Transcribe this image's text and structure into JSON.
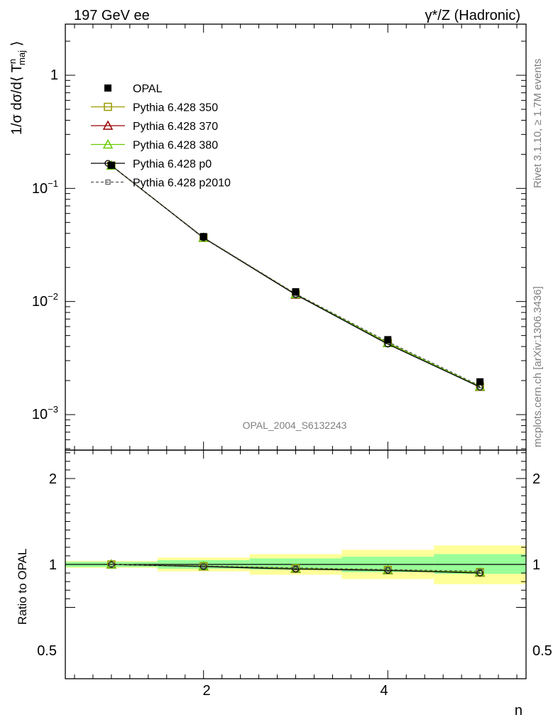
{
  "header": {
    "left_title": "197 GeV ee",
    "right_title": "γ*/Z (Hadronic)"
  },
  "side_text": {
    "rivet": "Rivet 3.1.10, ≥ 1.7M events",
    "site": "mcplots.cern.ch [arXiv:1306.3436]"
  },
  "watermark": "OPAL_2004_S6132243",
  "chart_data": [
    {
      "type": "line",
      "panel": "main",
      "ylabel": "1/σ dσ/d⟨ T^n_maj ⟩",
      "xlabel": "n",
      "xlim": [
        0.5,
        5.5
      ],
      "ylim": [
        0.0005,
        3
      ],
      "yscale": "log",
      "x_tick_labels": [
        "2",
        "4"
      ],
      "y_tick_labels": [
        "10^-3",
        "10^-2",
        "10^-1",
        "1"
      ],
      "legend": {
        "placement": "top-left",
        "entries": [
          "OPAL",
          "Pythia 6.428 350",
          "Pythia 6.428 370",
          "Pythia 6.428 380",
          "Pythia 6.428 p0",
          "Pythia 6.428 p2010"
        ]
      },
      "x": [
        1,
        2,
        3,
        4,
        5
      ],
      "series": [
        {
          "name": "OPAL",
          "values": [
            0.16,
            0.0375,
            0.0122,
            0.0046,
            0.00195
          ],
          "color": "#000000",
          "marker": "filled-square"
        },
        {
          "name": "Pythia 6.428 350",
          "values": [
            0.159,
            0.0366,
            0.0116,
            0.0043,
            0.00177
          ],
          "color": "#999900",
          "marker": "open-square"
        },
        {
          "name": "Pythia 6.428 370",
          "values": [
            0.159,
            0.0366,
            0.0115,
            0.0043,
            0.00176
          ],
          "color": "#990000",
          "marker": "open-triangle"
        },
        {
          "name": "Pythia 6.428 380",
          "values": [
            0.159,
            0.0367,
            0.0116,
            0.0043,
            0.00177
          ],
          "color": "#66cc00",
          "marker": "open-triangle"
        },
        {
          "name": "Pythia 6.428 p0",
          "values": [
            0.159,
            0.0365,
            0.0115,
            0.0042,
            0.00175
          ],
          "color": "#000000",
          "marker": "open-circle"
        },
        {
          "name": "Pythia 6.428 p2010",
          "values": [
            0.159,
            0.0368,
            0.0117,
            0.0044,
            0.0018
          ],
          "color": "#555555",
          "marker": "small-square",
          "dashed": true
        }
      ]
    },
    {
      "type": "line",
      "panel": "ratio",
      "ylabel": "Ratio to OPAL",
      "xlabel": "n",
      "xlim": [
        0.5,
        5.5
      ],
      "ylim": [
        0.4,
        2.4
      ],
      "y_tick_labels": [
        "0.5",
        "1",
        "2"
      ],
      "x_tick_labels": [
        "2",
        "4"
      ],
      "bins": [
        [
          0.5,
          1.5
        ],
        [
          1.5,
          2.5
        ],
        [
          2.5,
          3.5
        ],
        [
          3.5,
          4.5
        ],
        [
          4.5,
          5.5
        ]
      ],
      "band_green": [
        [
          0.97,
          1.03
        ],
        [
          0.95,
          1.05
        ],
        [
          0.94,
          1.07
        ],
        [
          0.91,
          1.09
        ],
        [
          0.89,
          1.12
        ]
      ],
      "band_yellow": [
        [
          0.96,
          1.04
        ],
        [
          0.92,
          1.08
        ],
        [
          0.88,
          1.12
        ],
        [
          0.83,
          1.17
        ],
        [
          0.77,
          1.22
        ]
      ],
      "x": [
        1,
        2,
        3,
        4,
        5
      ],
      "series": [
        {
          "name": "Pythia 6.428 350",
          "values": [
            1.0,
            0.98,
            0.955,
            0.935,
            0.91
          ],
          "color": "#999900",
          "marker": "open-square"
        },
        {
          "name": "Pythia 6.428 370",
          "values": [
            1.0,
            0.977,
            0.95,
            0.932,
            0.905
          ],
          "color": "#990000",
          "marker": "open-triangle"
        },
        {
          "name": "Pythia 6.428 380",
          "values": [
            1.0,
            0.979,
            0.953,
            0.934,
            0.908
          ],
          "color": "#66cc00",
          "marker": "open-triangle"
        },
        {
          "name": "Pythia 6.428 p0",
          "values": [
            1.0,
            0.975,
            0.945,
            0.93,
            0.9
          ],
          "color": "#000000",
          "marker": "open-circle"
        },
        {
          "name": "Pythia 6.428 p2010",
          "values": [
            1.0,
            0.982,
            0.96,
            0.94,
            0.92
          ],
          "color": "#555555",
          "marker": "small-square",
          "dashed": true
        }
      ]
    }
  ]
}
